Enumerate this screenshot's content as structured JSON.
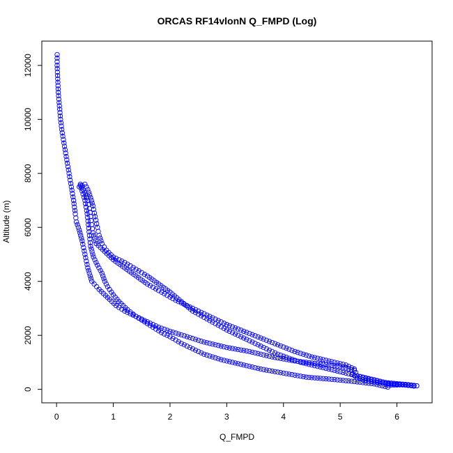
{
  "chart_data": {
    "type": "scatter",
    "title": "ORCAS RF14vlonN Q_FMPD (Log)",
    "xlabel": "Q_FMPD",
    "ylabel": "Altitude (m)",
    "xlim": [
      -0.26,
      6.62
    ],
    "ylim": [
      -500,
      12900
    ],
    "xticks": [
      0,
      1,
      2,
      3,
      4,
      5,
      6
    ],
    "yticks": [
      0,
      2000,
      4000,
      6000,
      8000,
      10000,
      12000
    ],
    "grid": false,
    "legend": "none",
    "marker": "open-circle",
    "color": "#0000ff",
    "series": [
      {
        "points": [
          [
            0.01,
            12400
          ],
          [
            0.01,
            12000
          ],
          [
            0.02,
            11500
          ],
          [
            0.03,
            11000
          ],
          [
            0.05,
            10500
          ],
          [
            0.07,
            10000
          ],
          [
            0.1,
            9500
          ],
          [
            0.14,
            9000
          ],
          [
            0.18,
            8500
          ],
          [
            0.22,
            8000
          ],
          [
            0.26,
            7500
          ],
          [
            0.3,
            7000
          ],
          [
            0.33,
            6500
          ],
          [
            0.35,
            6200
          ],
          [
            0.4,
            5900
          ],
          [
            0.45,
            5500
          ],
          [
            0.5,
            5000
          ],
          [
            0.55,
            4500
          ],
          [
            0.62,
            4000
          ],
          [
            0.75,
            3700
          ],
          [
            0.9,
            3400
          ],
          [
            1.05,
            3100
          ],
          [
            1.2,
            2900
          ],
          [
            1.4,
            2700
          ],
          [
            1.6,
            2500
          ],
          [
            1.8,
            2300
          ],
          [
            2.0,
            2150
          ],
          [
            2.3,
            1950
          ],
          [
            2.6,
            1750
          ],
          [
            3.0,
            1550
          ],
          [
            3.4,
            1400
          ],
          [
            3.8,
            1200
          ],
          [
            4.2,
            1050
          ],
          [
            4.6,
            950
          ],
          [
            5.0,
            850
          ],
          [
            5.25,
            700
          ],
          [
            5.22,
            550
          ],
          [
            5.3,
            420
          ],
          [
            5.5,
            300
          ],
          [
            5.85,
            200
          ],
          [
            6.2,
            170
          ],
          [
            6.35,
            130
          ]
        ]
      },
      {
        "points": [
          [
            6.35,
            130
          ],
          [
            6.1,
            170
          ],
          [
            5.85,
            150
          ],
          [
            5.84,
            80
          ],
          [
            5.6,
            200
          ],
          [
            5.2,
            300
          ],
          [
            4.8,
            380
          ],
          [
            4.4,
            450
          ],
          [
            4.0,
            600
          ],
          [
            3.6,
            750
          ],
          [
            3.2,
            950
          ],
          [
            2.9,
            1100
          ],
          [
            2.6,
            1300
          ],
          [
            2.4,
            1500
          ],
          [
            2.2,
            1700
          ],
          [
            2.0,
            1950
          ],
          [
            1.85,
            2100
          ],
          [
            1.7,
            2300
          ],
          [
            1.55,
            2500
          ],
          [
            1.4,
            2700
          ],
          [
            1.25,
            2950
          ],
          [
            1.1,
            3250
          ],
          [
            1.0,
            3500
          ],
          [
            0.9,
            3800
          ],
          [
            0.85,
            4000
          ],
          [
            0.8,
            4300
          ],
          [
            0.72,
            4600
          ],
          [
            0.65,
            4900
          ],
          [
            0.6,
            5300
          ],
          [
            0.58,
            5700
          ],
          [
            0.56,
            6100
          ],
          [
            0.54,
            6500
          ],
          [
            0.5,
            7000
          ],
          [
            0.45,
            7350
          ],
          [
            0.42,
            7550
          ],
          [
            0.4,
            7500
          ]
        ]
      },
      {
        "points": [
          [
            0.42,
            7600
          ],
          [
            0.5,
            7300
          ],
          [
            0.55,
            7000
          ],
          [
            0.58,
            6700
          ],
          [
            0.6,
            6400
          ],
          [
            0.62,
            6100
          ],
          [
            0.64,
            5800
          ],
          [
            0.7,
            5400
          ],
          [
            0.85,
            5100
          ],
          [
            1.0,
            4800
          ],
          [
            1.2,
            4500
          ],
          [
            1.4,
            4200
          ],
          [
            1.6,
            3900
          ],
          [
            1.85,
            3600
          ],
          [
            2.1,
            3300
          ],
          [
            2.4,
            3000
          ],
          [
            2.7,
            2700
          ],
          [
            3.0,
            2400
          ],
          [
            3.3,
            2150
          ],
          [
            3.6,
            1900
          ],
          [
            3.9,
            1650
          ],
          [
            4.2,
            1400
          ],
          [
            4.5,
            1200
          ],
          [
            4.8,
            1050
          ],
          [
            5.1,
            900
          ],
          [
            5.25,
            750
          ],
          [
            5.3,
            500
          ],
          [
            5.5,
            400
          ],
          [
            5.8,
            250
          ],
          [
            6.15,
            180
          ],
          [
            6.3,
            120
          ]
        ]
      },
      {
        "points": [
          [
            6.3,
            130
          ],
          [
            5.9,
            200
          ],
          [
            5.5,
            380
          ],
          [
            5.1,
            600
          ],
          [
            4.7,
            800
          ],
          [
            4.3,
            1000
          ],
          [
            3.9,
            1300
          ],
          [
            3.6,
            1600
          ],
          [
            3.3,
            1900
          ],
          [
            3.0,
            2200
          ],
          [
            2.7,
            2550
          ],
          [
            2.4,
            2900
          ],
          [
            2.2,
            3250
          ],
          [
            2.0,
            3600
          ],
          [
            1.8,
            3900
          ],
          [
            1.6,
            4200
          ],
          [
            1.4,
            4450
          ],
          [
            1.2,
            4700
          ],
          [
            1.0,
            4900
          ],
          [
            0.88,
            5150
          ],
          [
            0.8,
            5400
          ],
          [
            0.75,
            5700
          ],
          [
            0.72,
            6000
          ],
          [
            0.68,
            6400
          ],
          [
            0.64,
            6800
          ],
          [
            0.6,
            7100
          ],
          [
            0.55,
            7400
          ],
          [
            0.5,
            7600
          ],
          [
            0.45,
            7550
          ]
        ]
      }
    ]
  }
}
